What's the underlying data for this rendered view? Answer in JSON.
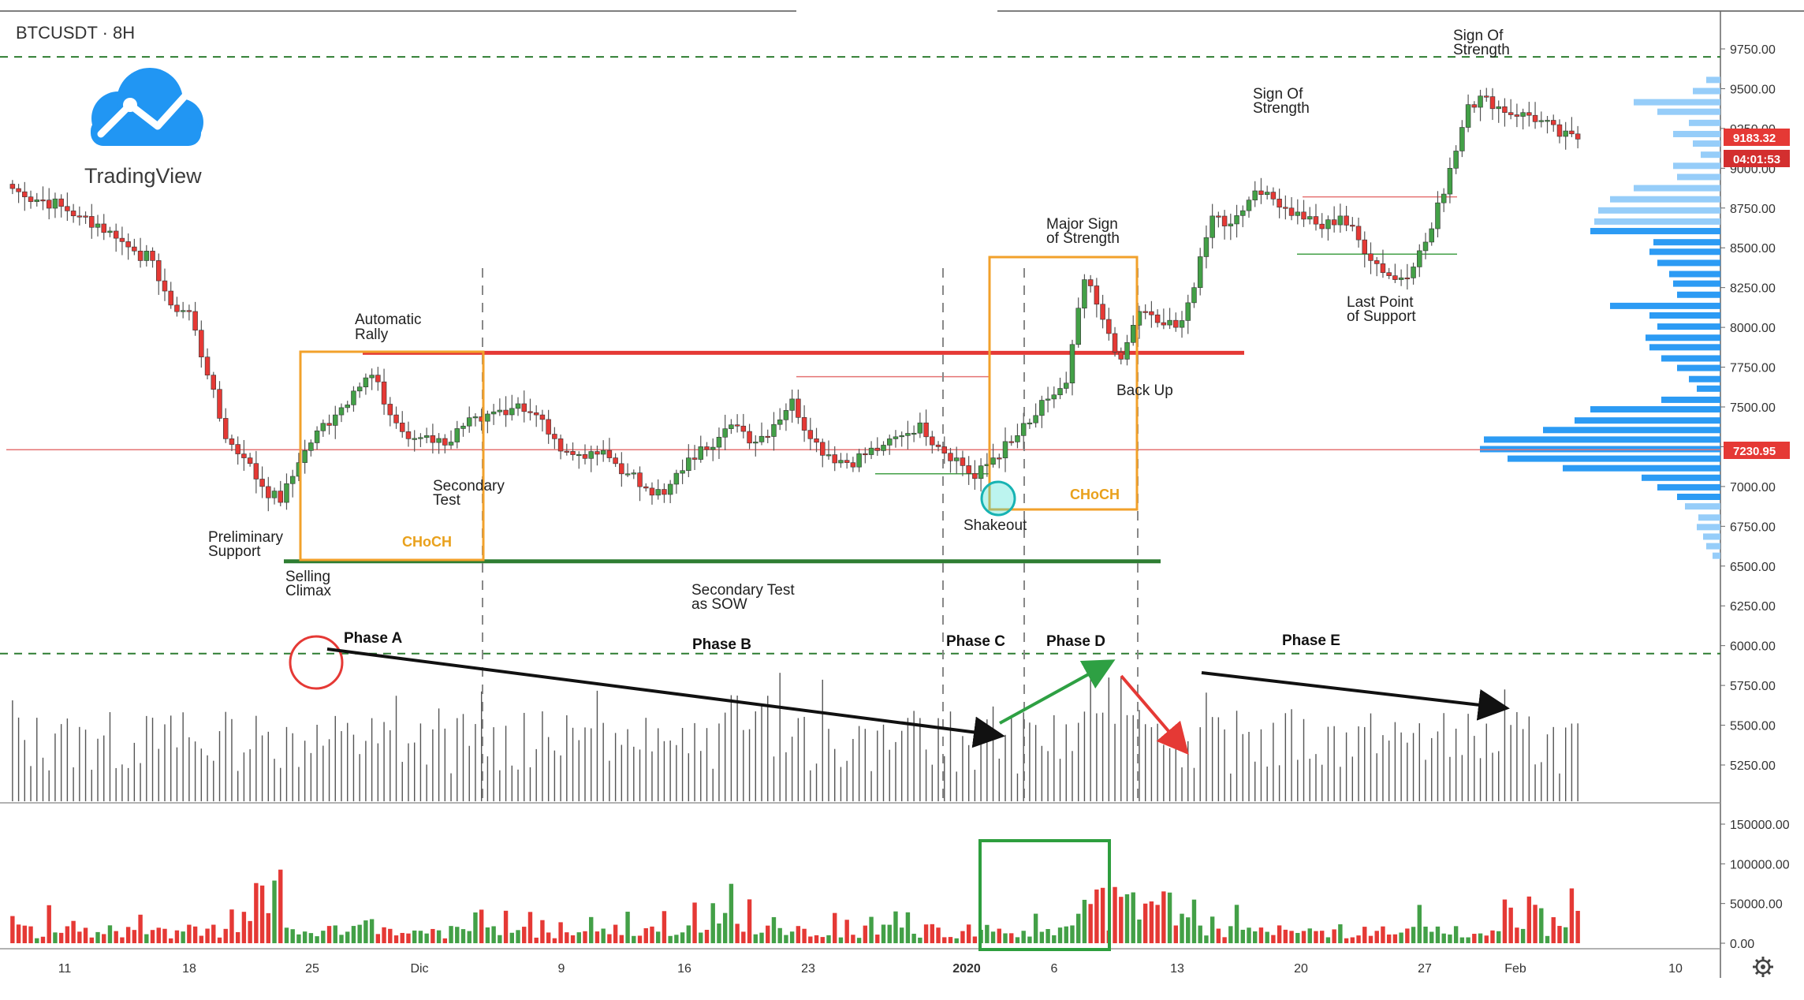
{
  "header": {
    "symbol": "BTCUSDT · 8H"
  },
  "logo": {
    "name": "TradingView",
    "icon": "cloud-chart-icon",
    "color": "#2196f3"
  },
  "colors": {
    "up": "#43a047",
    "down": "#e53935",
    "resistance": "#e53935",
    "support": "#2e7d32",
    "box": "#f2a12b",
    "price_line": "#e57373",
    "profile_dark": "#2196f3",
    "profile_light": "#90caf9"
  },
  "chart_data": [
    {
      "type": "candlestick",
      "y_ticks": [
        "9750.00",
        "9500.00",
        "9250.00",
        "9000.00",
        "8750.00",
        "8500.00",
        "8250.00",
        "8000.00",
        "7750.00",
        "7500.00",
        "7250.00",
        "7000.00",
        "6750.00",
        "6500.00",
        "6250.00",
        "6000.00",
        "5750.00",
        "5500.00",
        "5250.00"
      ],
      "ylim": [
        5000,
        9900
      ],
      "x_ticks": [
        "11",
        "18",
        "25",
        "Dic",
        "9",
        "16",
        "23",
        "2020",
        "6",
        "13",
        "20",
        "27",
        "Feb",
        "10"
      ],
      "price_badges": {
        "last_price": "9183.32",
        "countdown": "04:01:53",
        "level": "7230.95"
      },
      "closes_daily": [
        8820,
        8800,
        8760,
        8700,
        8650,
        8560,
        8480,
        8420,
        8140,
        8100,
        7700,
        7300,
        7180,
        7000,
        6900,
        7150,
        7350,
        7450,
        7600,
        7700,
        7450,
        7300,
        7320,
        7260,
        7380,
        7410,
        7480,
        7520,
        7450,
        7300,
        7200,
        7220,
        7180,
        7080,
        6990,
        6950,
        7100,
        7250,
        7310,
        7380,
        7280,
        7390,
        7550,
        7300,
        7200,
        7150,
        7200,
        7260,
        7320,
        7400,
        7250,
        7180,
        7050,
        7180,
        7280,
        7400,
        7550,
        7650,
        8300,
        8050,
        7800,
        8100,
        8030,
        8000,
        8250,
        8700,
        8650,
        8800,
        8850,
        8750,
        8680,
        8620,
        8700,
        8550,
        8400,
        8300,
        8380,
        8620,
        9000,
        9400,
        9450,
        9350,
        9350,
        9300,
        9200,
        9183
      ],
      "annotations": [
        "Automatic Rally",
        "Secondary Test",
        "Preliminary Support",
        "Selling Climax",
        "Secondary Test as SOW",
        "Major Sign of Strength",
        "Shakeout",
        "Back Up",
        "Sign Of Strength",
        "Sign Of Strength",
        "Last Point of Support"
      ],
      "labels": {
        "choch_1": "CHoCH",
        "choch_2": "CHoCH"
      },
      "phases": [
        "Phase A",
        "Phase B",
        "Phase C",
        "Phase D",
        "Phase E"
      ]
    },
    {
      "type": "bar",
      "series_name": "volume",
      "y_ticks": [
        "150000.00",
        "100000.00",
        "50000.00",
        "0.00"
      ],
      "ylim": [
        0,
        160000
      ]
    }
  ],
  "annotations": {
    "automatic_rally": [
      "Automatic",
      "Rally"
    ],
    "secondary_test": [
      "Secondary",
      "Test"
    ],
    "preliminary_support": [
      "Preliminary",
      "Support"
    ],
    "selling_climax": [
      "Selling",
      "Climax"
    ],
    "secondary_test_sow": [
      "Secondary Test",
      "as SOW"
    ],
    "major_sos": [
      "Major Sign",
      "of Strength"
    ],
    "shakeout": "Shakeout",
    "back_up": "Back Up",
    "sos_1": [
      "Sign Of",
      "Strength"
    ],
    "sos_2": [
      "Sign Of",
      "Strength"
    ],
    "lps": [
      "Last Point",
      "of Support"
    ]
  },
  "settings_icon": "gear-icon"
}
